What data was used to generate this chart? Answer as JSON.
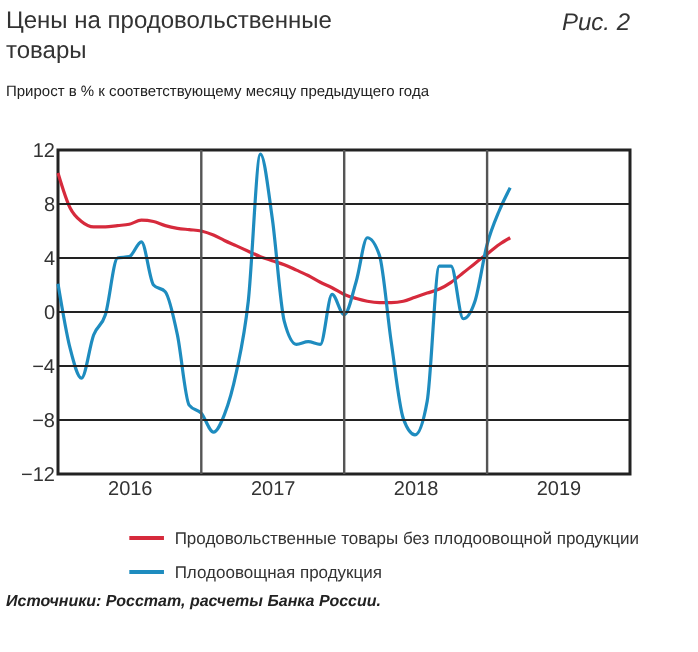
{
  "chart_data": {
    "type": "line",
    "title": "Цены на продовольственные товары",
    "subtitle": "Прирост в % к соответствующему месяцу предыдущего года",
    "annotations": [
      "Рис. 2",
      "Источники: Росстат, расчеты Банка России."
    ],
    "x": [
      "2016-01",
      "2016-02",
      "2016-03",
      "2016-04",
      "2016-05",
      "2016-06",
      "2016-07",
      "2016-08",
      "2016-09",
      "2016-10",
      "2016-11",
      "2016-12",
      "2017-01",
      "2017-02",
      "2017-03",
      "2017-04",
      "2017-05",
      "2017-06",
      "2017-07",
      "2017-08",
      "2017-09",
      "2017-10",
      "2017-11",
      "2017-12",
      "2018-01",
      "2018-02",
      "2018-03",
      "2018-04",
      "2018-05",
      "2018-06",
      "2018-07",
      "2018-08",
      "2018-09",
      "2018-10",
      "2018-11",
      "2018-12",
      "2019-01",
      "2019-02",
      "2019-03"
    ],
    "series": [
      {
        "name": "Продовольственные товары без плодоовощной продукции",
        "color": "#d62a3c",
        "values": [
          10.3,
          7.7,
          6.7,
          6.3,
          6.3,
          6.4,
          6.5,
          6.8,
          6.7,
          6.4,
          6.2,
          6.1,
          6.0,
          5.7,
          5.3,
          4.9,
          4.5,
          4.1,
          3.8,
          3.5,
          3.1,
          2.7,
          2.2,
          1.8,
          1.3,
          1.0,
          0.8,
          0.7,
          0.7,
          0.8,
          1.1,
          1.4,
          1.7,
          2.2,
          2.9,
          3.6,
          4.3,
          5.0,
          5.5
        ]
      },
      {
        "name": "Плодоовощная продукция",
        "color": "#1e8cbf",
        "values": [
          2.1,
          -2.7,
          -4.9,
          -1.7,
          -0.2,
          4.0,
          4.1,
          5.2,
          2.0,
          1.5,
          -1.7,
          -6.9,
          -7.5,
          -8.9,
          -7.6,
          -4.4,
          0.8,
          11.7,
          7.0,
          -0.7,
          -2.4,
          -2.2,
          -2.4,
          1.3,
          -0.2,
          2.3,
          5.5,
          4.2,
          -2.2,
          -7.9,
          -9.1,
          -6.6,
          3.4,
          3.4,
          -0.5,
          0.8,
          5.0,
          7.5,
          9.2
        ]
      }
    ],
    "xlim": [
      "2016-01",
      "2020-01"
    ],
    "xticks": [
      {
        "value": "2016-07",
        "label": "2016"
      },
      {
        "value": "2017-01",
        "label": null
      },
      {
        "value": "2017-07",
        "label": "2017"
      },
      {
        "value": "2018-01",
        "label": null
      },
      {
        "value": "2018-07",
        "label": "2018"
      },
      {
        "value": "2019-01",
        "label": null
      },
      {
        "value": "2019-07",
        "label": "2019"
      }
    ],
    "ylim": [
      -12,
      12
    ],
    "yticks": [
      -12,
      -8,
      -4,
      0,
      4,
      8,
      12
    ],
    "grid": true,
    "legend": "bottom"
  }
}
